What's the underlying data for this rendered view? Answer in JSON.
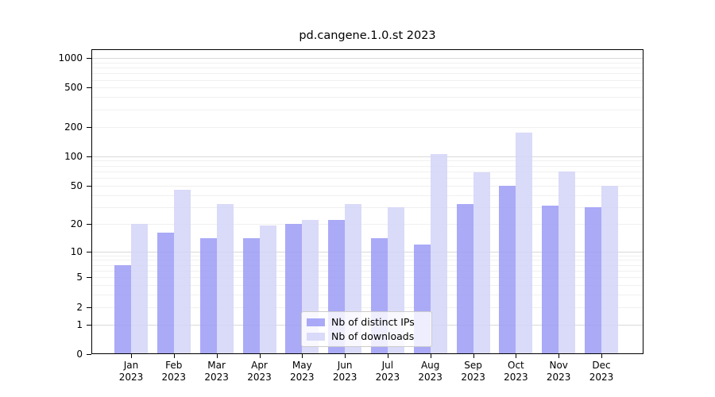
{
  "chart_data": {
    "type": "bar",
    "title": "pd.cangene.1.0.st 2023",
    "scale": "log1p",
    "categories": [
      "Jan",
      "Feb",
      "Mar",
      "Apr",
      "May",
      "Jun",
      "Jul",
      "Aug",
      "Sep",
      "Oct",
      "Nov",
      "Dec"
    ],
    "year_label": "2023",
    "yticks": [
      0,
      1,
      2,
      5,
      10,
      20,
      50,
      100,
      200,
      500,
      1000
    ],
    "ylim": [
      0,
      1200
    ],
    "grid": "horizontal major gridlines at powers of 10 with faint log minor gridlines",
    "legend_position": "inside plot, lower center",
    "series": [
      {
        "name": "Nb of distinct IPs",
        "color": "#aaaaf6",
        "fill": "rgba(155,155,246,0.85)",
        "values": [
          7,
          16,
          14,
          14,
          20,
          22,
          14,
          12,
          32,
          50,
          31,
          30
        ]
      },
      {
        "name": "Nb of downloads",
        "color": "#d9d9f8",
        "fill": "rgba(211,211,248,0.85)",
        "values": [
          20,
          45,
          32,
          19,
          22,
          32,
          30,
          105,
          68,
          175,
          70,
          50
        ]
      }
    ],
    "colors": {
      "major_gridline": "#d9d9d9",
      "minor_gridline": "#f0f0f0",
      "spine": "#000000",
      "background": "#ffffff"
    }
  }
}
